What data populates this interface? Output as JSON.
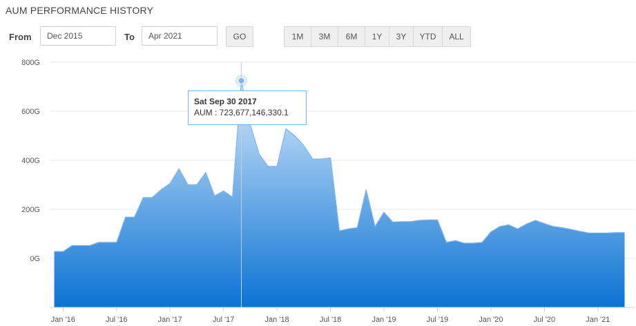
{
  "header": {
    "title": "AUM PERFORMANCE HISTORY"
  },
  "range": {
    "from_label": "From",
    "from_value": "Dec 2015",
    "to_label": "To",
    "to_value": "Apr 2021",
    "go_label": "GO",
    "buttons": [
      "1M",
      "3M",
      "6M",
      "1Y",
      "3Y",
      "YTD",
      "ALL"
    ]
  },
  "tooltip": {
    "date": "Sat Sep 30 2017",
    "text": "AUM : 723,677,146,330.1"
  },
  "colors": {
    "area_top": "#d6e9fb",
    "area_bottom": "#0b73d4",
    "line": "#7cb5ec",
    "marker": "#7cb5ec"
  },
  "chart_data": {
    "type": "area",
    "title": "AUM PERFORMANCE HISTORY",
    "xlabel": "",
    "ylabel": "",
    "ylim": [
      -200,
      800
    ],
    "yticks": [
      0,
      200,
      400,
      600,
      800
    ],
    "ytick_labels": [
      "0G",
      "200G",
      "400G",
      "600G",
      "800G"
    ],
    "xticks": [
      "2016-01",
      "2016-07",
      "2017-01",
      "2017-07",
      "2018-01",
      "2018-07",
      "2019-01",
      "2019-07",
      "2020-01",
      "2020-07",
      "2021-01"
    ],
    "xtick_labels": [
      "Jan '16",
      "Jul '16",
      "Jan '17",
      "Jul '17",
      "Jan '18",
      "Jul '18",
      "Jan '19",
      "Jul '19",
      "Jan '20",
      "Jul '20",
      "Jan '21"
    ],
    "x_unit": "date (YYYY-MM)",
    "y_unit": "billions",
    "grid": true,
    "legend": "none",
    "highlight": {
      "x": "2017-09",
      "y": 724
    },
    "x": [
      "2015-12",
      "2016-01",
      "2016-02",
      "2016-03",
      "2016-04",
      "2016-05",
      "2016-06",
      "2016-07",
      "2016-08",
      "2016-09",
      "2016-10",
      "2016-11",
      "2016-12",
      "2017-01",
      "2017-02",
      "2017-03",
      "2017-04",
      "2017-05",
      "2017-06",
      "2017-07",
      "2017-08",
      "2017-09",
      "2017-10",
      "2017-11",
      "2017-12",
      "2018-01",
      "2018-02",
      "2018-03",
      "2018-04",
      "2018-05",
      "2018-06",
      "2018-07",
      "2018-08",
      "2018-09",
      "2018-10",
      "2018-11",
      "2018-12",
      "2019-01",
      "2019-02",
      "2019-03",
      "2019-04",
      "2019-05",
      "2019-06",
      "2019-07",
      "2019-08",
      "2019-09",
      "2019-10",
      "2019-11",
      "2019-12",
      "2020-01",
      "2020-02",
      "2020-03",
      "2020-04",
      "2020-05",
      "2020-06",
      "2020-07",
      "2020-08",
      "2020-09",
      "2020-10",
      "2020-11",
      "2020-12",
      "2021-01",
      "2021-02",
      "2021-03",
      "2021-04"
    ],
    "series": [
      {
        "values": [
          28,
          28,
          52,
          52,
          52,
          65,
          65,
          65,
          168,
          168,
          248,
          248,
          280,
          305,
          365,
          300,
          300,
          350,
          255,
          275,
          250,
          724,
          545,
          425,
          375,
          375,
          528,
          500,
          460,
          405,
          405,
          410,
          112,
          120,
          125,
          280,
          130,
          188,
          148,
          150,
          150,
          155,
          157,
          157,
          65,
          72,
          62,
          62,
          65,
          108,
          130,
          137,
          120,
          140,
          155,
          142,
          130,
          125,
          118,
          110,
          103,
          103,
          103,
          105,
          105
        ]
      }
    ]
  }
}
